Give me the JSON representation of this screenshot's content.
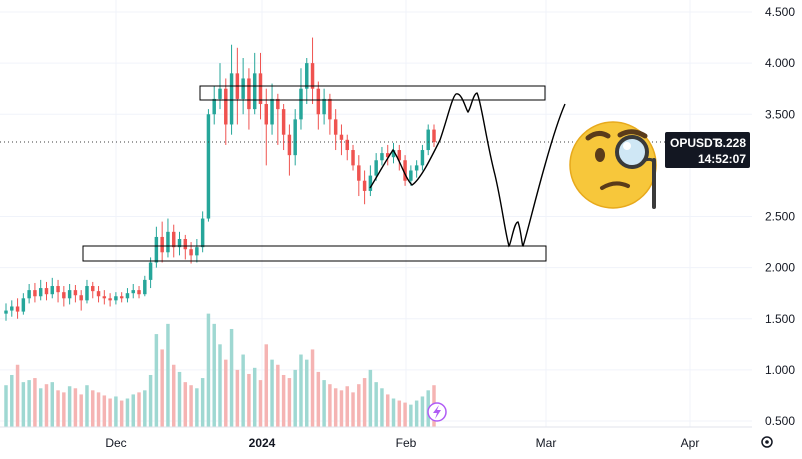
{
  "chart_data": {
    "type": "candlestick",
    "symbol": "OPUSDT",
    "last_price": "3.228",
    "countdown": "14:52:07",
    "y_ticks": [
      "4.500",
      "4.000",
      "3.500",
      "2.500",
      "2.000",
      "1.500",
      "1.000",
      "0.500"
    ],
    "ylim": [
      0.5,
      4.5
    ],
    "x_ticks": [
      {
        "label": "Dec",
        "bold": false
      },
      {
        "label": "2024",
        "bold": true
      },
      {
        "label": "Feb",
        "bold": false
      },
      {
        "label": "Mar",
        "bold": false
      },
      {
        "label": "Apr",
        "bold": false
      }
    ],
    "candles": [
      [
        1.55,
        1.58,
        1.48,
        1.65
      ],
      [
        1.58,
        1.62,
        1.52,
        1.68
      ],
      [
        1.62,
        1.57,
        1.5,
        1.7
      ],
      [
        1.57,
        1.7,
        1.54,
        1.75
      ],
      [
        1.7,
        1.78,
        1.65,
        1.84
      ],
      [
        1.78,
        1.72,
        1.66,
        1.85
      ],
      [
        1.72,
        1.8,
        1.68,
        1.88
      ],
      [
        1.8,
        1.74,
        1.68,
        1.86
      ],
      [
        1.74,
        1.82,
        1.7,
        1.9
      ],
      [
        1.82,
        1.76,
        1.66,
        1.88
      ],
      [
        1.76,
        1.7,
        1.62,
        1.82
      ],
      [
        1.7,
        1.78,
        1.64,
        1.84
      ],
      [
        1.78,
        1.73,
        1.66,
        1.83
      ],
      [
        1.73,
        1.68,
        1.58,
        1.78
      ],
      [
        1.68,
        1.82,
        1.65,
        1.88
      ],
      [
        1.82,
        1.77,
        1.7,
        1.86
      ],
      [
        1.77,
        1.72,
        1.66,
        1.82
      ],
      [
        1.72,
        1.7,
        1.64,
        1.78
      ],
      [
        1.7,
        1.68,
        1.62,
        1.75
      ],
      [
        1.68,
        1.72,
        1.64,
        1.76
      ],
      [
        1.72,
        1.7,
        1.66,
        1.76
      ],
      [
        1.7,
        1.75,
        1.66,
        1.8
      ],
      [
        1.75,
        1.78,
        1.7,
        1.84
      ],
      [
        1.78,
        1.74,
        1.7,
        1.82
      ],
      [
        1.74,
        1.88,
        1.72,
        1.92
      ],
      [
        1.88,
        2.05,
        1.8,
        2.1
      ],
      [
        2.05,
        2.3,
        2.0,
        2.4
      ],
      [
        2.3,
        2.15,
        2.05,
        2.45
      ],
      [
        2.15,
        2.35,
        2.1,
        2.48
      ],
      [
        2.35,
        2.2,
        2.1,
        2.42
      ],
      [
        2.2,
        2.28,
        2.12,
        2.35
      ],
      [
        2.28,
        2.18,
        2.08,
        2.32
      ],
      [
        2.18,
        2.12,
        2.04,
        2.25
      ],
      [
        2.12,
        2.2,
        2.05,
        2.28
      ],
      [
        2.2,
        2.48,
        2.15,
        2.55
      ],
      [
        2.48,
        3.5,
        2.45,
        3.55
      ],
      [
        3.5,
        3.65,
        3.4,
        3.78
      ],
      [
        3.65,
        3.75,
        3.55,
        4.0
      ],
      [
        3.75,
        3.4,
        3.2,
        3.85
      ],
      [
        3.4,
        3.9,
        3.3,
        4.18
      ],
      [
        3.9,
        3.65,
        3.4,
        4.15
      ],
      [
        3.65,
        3.85,
        3.5,
        4.05
      ],
      [
        3.85,
        3.55,
        3.35,
        3.95
      ],
      [
        3.55,
        3.9,
        3.5,
        4.1
      ],
      [
        3.9,
        3.6,
        3.45,
        4.1
      ],
      [
        3.6,
        3.4,
        3.0,
        3.75
      ],
      [
        3.4,
        3.65,
        3.3,
        3.8
      ],
      [
        3.65,
        3.55,
        3.2,
        3.7
      ],
      [
        3.55,
        3.3,
        3.15,
        3.6
      ],
      [
        3.3,
        3.1,
        2.9,
        3.4
      ],
      [
        3.1,
        3.45,
        3.0,
        3.55
      ],
      [
        3.45,
        3.75,
        3.35,
        3.95
      ],
      [
        3.75,
        4.0,
        3.6,
        4.05
      ],
      [
        4.0,
        3.75,
        3.6,
        4.25
      ],
      [
        3.75,
        3.5,
        3.35,
        3.82
      ],
      [
        3.5,
        3.65,
        3.4,
        3.75
      ],
      [
        3.65,
        3.45,
        3.3,
        3.7
      ],
      [
        3.45,
        3.3,
        3.15,
        3.55
      ],
      [
        3.3,
        3.25,
        3.1,
        3.4
      ],
      [
        3.25,
        3.15,
        3.05,
        3.3
      ],
      [
        3.15,
        3.0,
        2.95,
        3.2
      ],
      [
        3.0,
        2.85,
        2.7,
        3.1
      ],
      [
        2.85,
        2.75,
        2.62,
        2.95
      ],
      [
        2.75,
        2.9,
        2.7,
        3.0
      ],
      [
        2.9,
        3.05,
        2.85,
        3.12
      ],
      [
        3.05,
        3.12,
        3.0,
        3.18
      ],
      [
        3.12,
        3.08,
        3.0,
        3.2
      ],
      [
        3.08,
        3.15,
        3.02,
        3.22
      ],
      [
        3.15,
        3.05,
        2.95,
        3.2
      ],
      [
        3.05,
        2.85,
        2.8,
        3.1
      ],
      [
        2.85,
        2.95,
        2.8,
        3.0
      ],
      [
        2.95,
        3.0,
        2.88,
        3.05
      ],
      [
        3.0,
        3.15,
        2.95,
        3.2
      ],
      [
        3.15,
        3.35,
        3.1,
        3.4
      ],
      [
        3.35,
        3.228,
        3.18,
        3.4
      ]
    ],
    "volumes": [
      0.85,
      0.95,
      1.05,
      0.88,
      0.9,
      0.92,
      0.82,
      0.86,
      0.88,
      0.8,
      0.78,
      0.84,
      0.82,
      0.76,
      0.85,
      0.8,
      0.78,
      0.75,
      0.72,
      0.74,
      0.7,
      0.72,
      0.76,
      0.78,
      0.8,
      0.95,
      1.35,
      1.2,
      1.45,
      1.05,
      0.98,
      0.88,
      0.85,
      0.82,
      0.92,
      1.55,
      1.45,
      1.25,
      1.1,
      1.4,
      1.0,
      1.15,
      0.96,
      1.02,
      0.9,
      1.25,
      1.1,
      1.05,
      0.95,
      0.92,
      1.0,
      1.15,
      1.1,
      1.2,
      0.98,
      0.9,
      0.86,
      0.82,
      0.8,
      0.84,
      0.78,
      0.86,
      0.92,
      1.0,
      0.88,
      0.82,
      0.76,
      0.72,
      0.7,
      0.68,
      0.66,
      0.7,
      0.74,
      0.8,
      0.85
    ]
  }
}
